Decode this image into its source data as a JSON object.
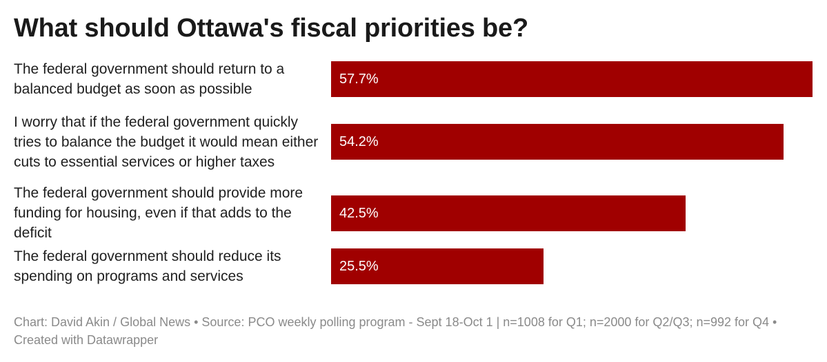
{
  "chart_data": {
    "type": "bar",
    "orientation": "horizontal",
    "title": "What should Ottawa's fiscal priorities be?",
    "categories": [
      "The federal government should return to a balanced budget as soon as possible",
      "I worry that if the federal government quickly tries to balance the budget it would mean either cuts to essential services or higher taxes",
      "The federal government should provide more funding for housing, even if that adds to the deficit",
      "The federal government should reduce its spending on programs and services"
    ],
    "values": [
      57.7,
      54.2,
      42.5,
      25.5
    ],
    "value_labels": [
      "57.7%",
      "54.2%",
      "42.5%",
      "25.5%"
    ],
    "unit": "%",
    "xlim": [
      0,
      57.7
    ],
    "bar_color": "#a00000",
    "grid": false
  },
  "footer": {
    "text": "Chart: David Akin / Global News • Source: PCO weekly polling program - Sept 18-Oct 1 | n=1008 for Q1; n=2000 for Q2/Q3; n=992 for Q4 • Created with Datawrapper"
  }
}
